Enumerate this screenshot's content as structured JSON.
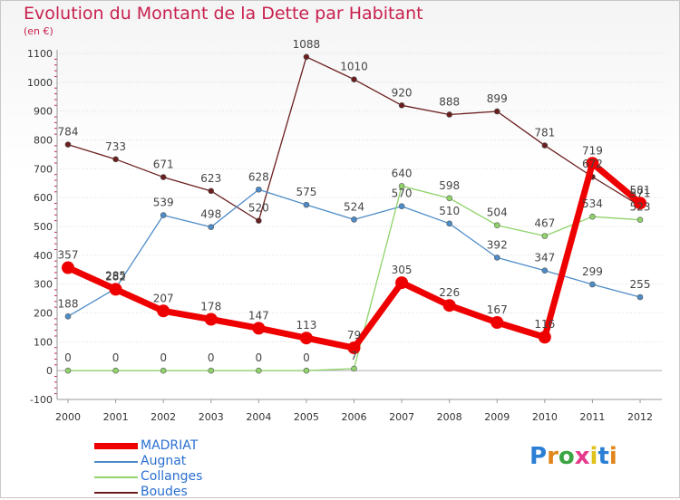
{
  "title": "Evolution du Montant de la Dette par Habitant",
  "subtitle": "(en €)",
  "logo": {
    "text": "Proxiti",
    "letter_colors": [
      "#2b7fd4",
      "#e0861a",
      "#3aa542",
      "#e63a8c",
      "#e0c21a",
      "#2b7fd4",
      "#e0861a"
    ]
  },
  "chart_data": {
    "type": "line",
    "title": "Evolution du Montant de la Dette par Habitant",
    "subtitle": "(en €)",
    "xlabel": "",
    "ylabel": "",
    "ylim": [
      -100,
      1100
    ],
    "yticks": [
      -100,
      0,
      100,
      200,
      300,
      400,
      500,
      600,
      700,
      800,
      900,
      1000,
      1100
    ],
    "grid": "horizontal",
    "legend_position": "bottom-left",
    "x": [
      2000,
      2001,
      2002,
      2003,
      2004,
      2005,
      2006,
      2007,
      2008,
      2009,
      2010,
      2011,
      2012
    ],
    "series": [
      {
        "name": "Boudes",
        "color": "#6b1e1e",
        "width": 1.3,
        "marker": 3,
        "values": [
          784,
          733,
          671,
          623,
          520,
          1088,
          1010,
          920,
          888,
          899,
          781,
          672,
          571
        ]
      },
      {
        "name": "Augnat",
        "color": "#4d8cc8",
        "width": 1.3,
        "marker": 3,
        "values": [
          188,
          285,
          539,
          498,
          628,
          575,
          524,
          570,
          510,
          392,
          347,
          299,
          255
        ]
      },
      {
        "name": "Collanges",
        "color": "#8fd36a",
        "width": 1.3,
        "marker": 3,
        "values": [
          0,
          0,
          0,
          0,
          0,
          0,
          7,
          640,
          598,
          504,
          467,
          534,
          523
        ]
      },
      {
        "name": "MADRIAT",
        "color": "#ee0000",
        "width": 7,
        "marker": 7,
        "values": [
          357,
          282,
          207,
          178,
          147,
          113,
          79,
          305,
          226,
          167,
          116,
          719,
          581
        ]
      }
    ],
    "legend_order": [
      "MADRIAT",
      "Augnat",
      "Collanges",
      "Boudes"
    ]
  }
}
